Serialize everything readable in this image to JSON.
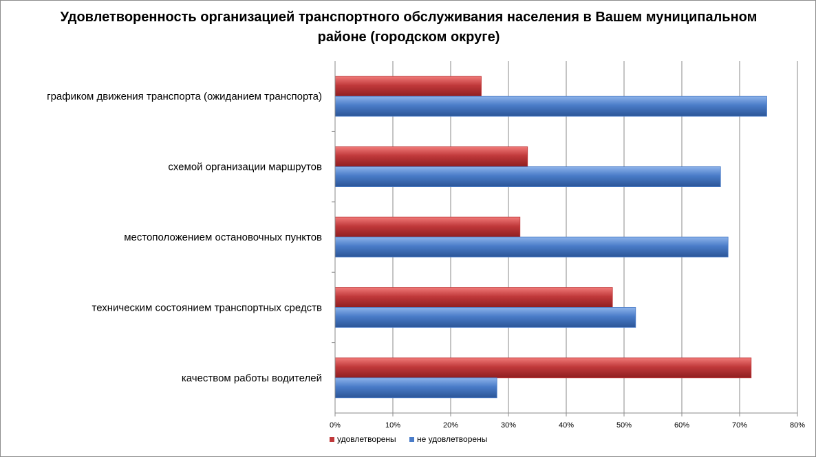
{
  "chart_data": {
    "type": "bar",
    "orientation": "horizontal",
    "title": "Удовлетворенность организацией транспортного обслуживания населения в Вашем муниципальном районе (городском округе)",
    "categories": [
      "графиком движения транспорта (ожиданием транспорта)",
      "схемой организации маршрутов",
      "местоположением остановочных пунктов",
      "техническим состоянием транспортных средств",
      "качеством работы водителей"
    ],
    "series": [
      {
        "name": "удовлетворены",
        "values": [
          25.3,
          33.3,
          32.0,
          48.0,
          72.0
        ],
        "color": "#c0393b"
      },
      {
        "name": "не удовлетворены",
        "values": [
          74.7,
          66.7,
          68.0,
          52.0,
          28.0
        ],
        "color": "#4a7cc8"
      }
    ],
    "xlim": [
      0,
      80
    ],
    "x_ticks": [
      "0%",
      "10%",
      "20%",
      "30%",
      "40%",
      "50%",
      "60%",
      "70%",
      "80%"
    ],
    "grid": "vertical",
    "legend_position": "bottom"
  }
}
